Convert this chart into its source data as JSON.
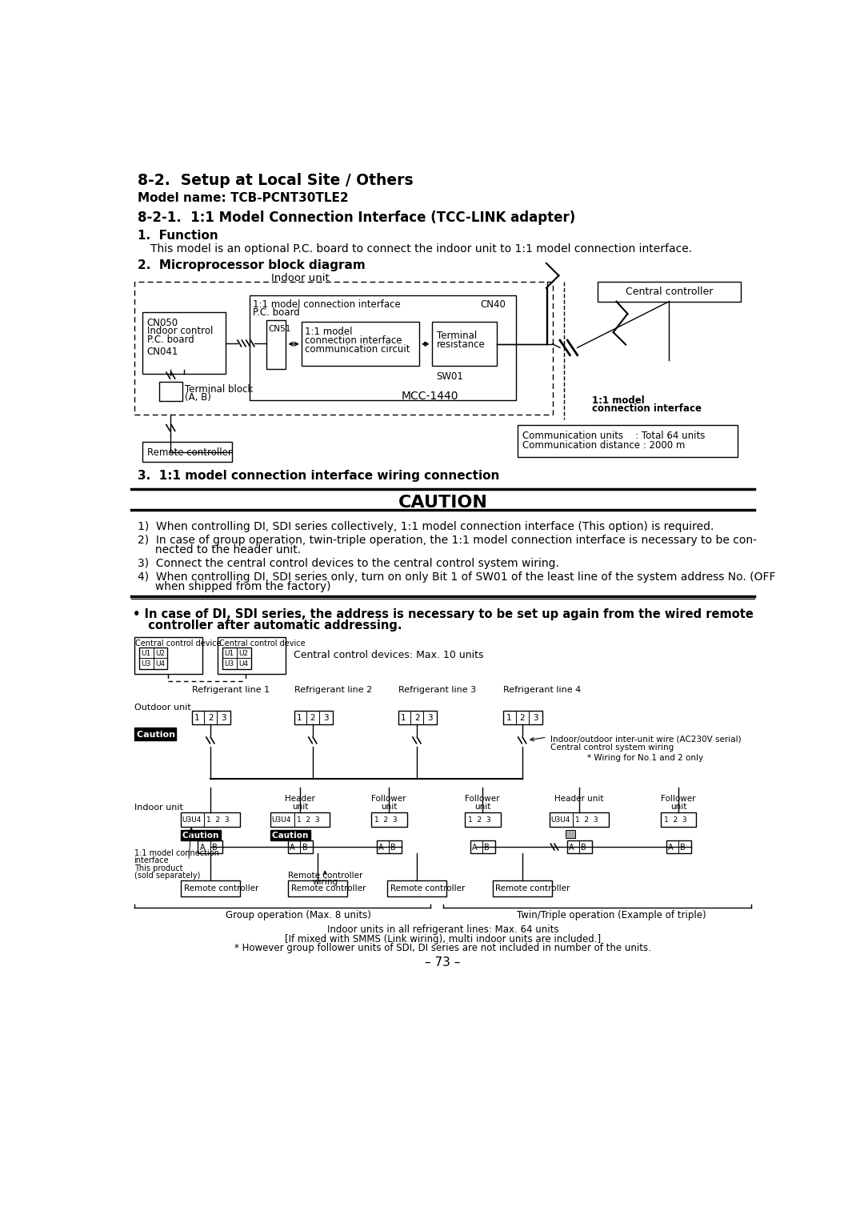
{
  "title_82": "8-2.  Setup at Local Site / Others",
  "model_name_line": "Model name: TCB-PCNT30TLE2",
  "title_821": "8-2-1.  1:1 Model Connection Interface (TCC-LINK adapter)",
  "section1_title": "1.  Function",
  "section1_text": "This model is an optional P.C. board to connect the indoor unit to 1:1 model connection interface.",
  "section2_title": "2.  Microprocessor block diagram",
  "section3_title": "3.  1:1 model connection interface wiring connection",
  "caution_title": "CAUTION",
  "caution_item1": "1)  When controlling DI, SDI series collectively, 1:1 model connection interface (This option) is required.",
  "caution_item2a": "2)  In case of group operation, twin-triple operation, the 1:1 model connection interface is necessary to be con-",
  "caution_item2b": "     nected to the header unit.",
  "caution_item3": "3)  Connect the central control devices to the central control system wiring.",
  "caution_item4a": "4)  When controlling DI, SDI series only, turn on only Bit 1 of SW01 of the least line of the system address No. (OFF",
  "caution_item4b": "     when shipped from the factory)",
  "bullet_line1": "• In case of DI, SDI series, the address is necessary to be set up again from the wired remote",
  "bullet_line2": "  controller after automatic addressing.",
  "footer_text1": "Indoor units in all refrigerant lines: Max. 64 units",
  "footer_text2": "[If mixed with SMMS (Link wiring), multi indoor units are included.]",
  "footer_text3": "* However group follower units of SDI, DI series are not included in number of the units.",
  "page_number": "– 73 –",
  "bg_color": "#ffffff"
}
